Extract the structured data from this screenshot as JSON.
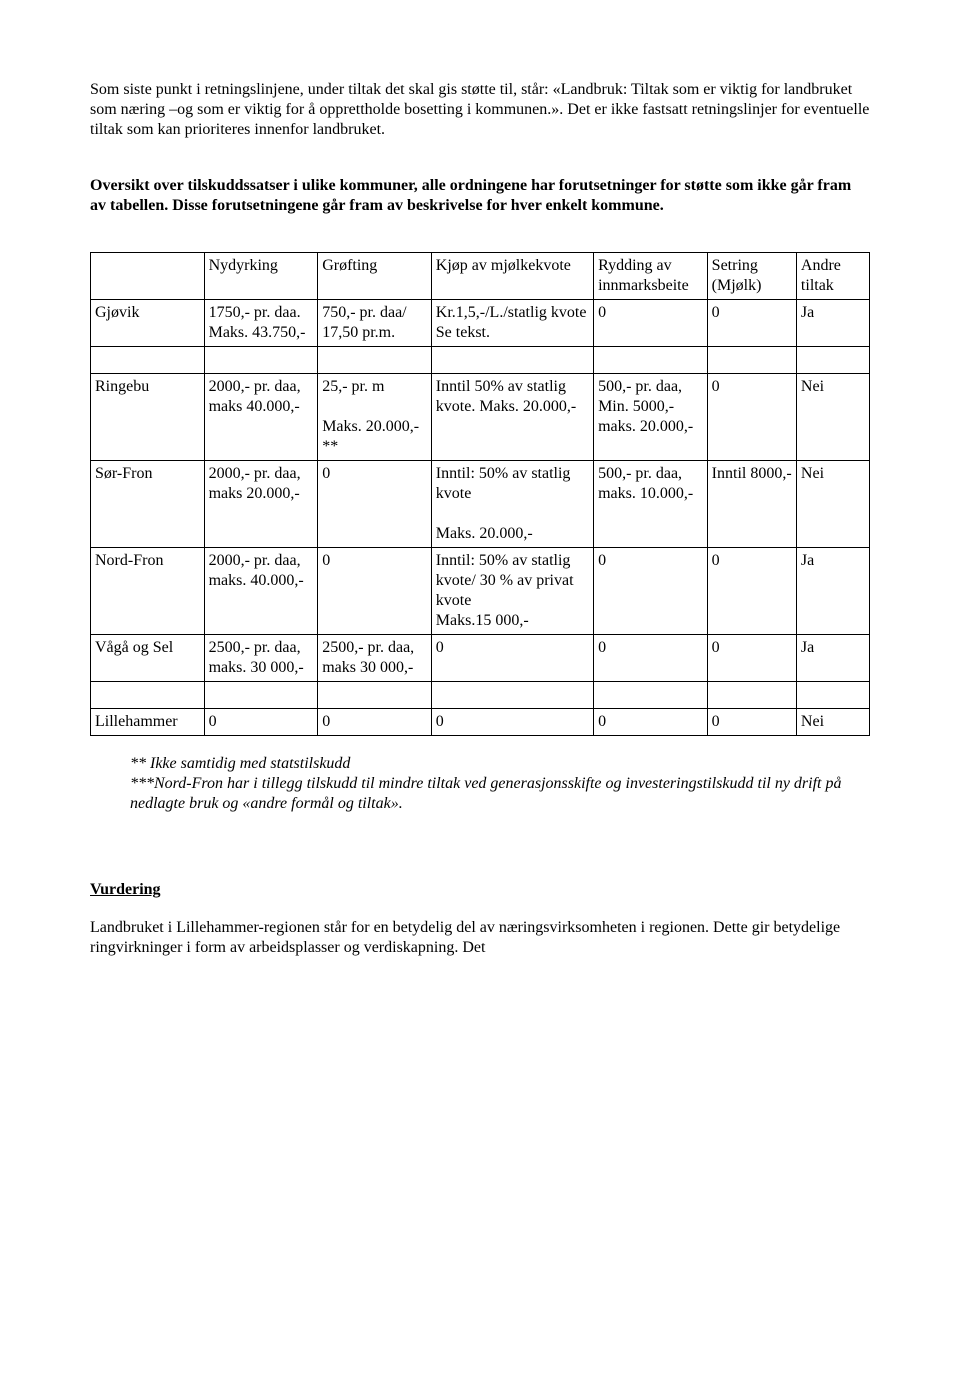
{
  "para1": "Som siste punkt i retningslinjene, under tiltak det skal gis støtte til, står: «Landbruk: Tiltak som er viktig for landbruket som næring –og  som er viktig for å opprettholde bosetting i kommunen.». Det er ikke fastsatt retningslinjer for eventuelle tiltak som kan prioriteres innenfor landbruket.",
  "para2": "Oversikt over tilskuddssatser i ulike kommuner, alle ordningene har forutsetninger for støtte som ikke går fram av tabellen. Disse forutsetningene går fram av beskrivelse for hver enkelt kommune.",
  "table": {
    "headers": [
      "",
      "Nydyrking",
      "Grøfting",
      "Kjøp av mjølkekvote",
      "Rydding av innmarksbeite",
      "Setring (Mjølk)",
      "Andre tiltak"
    ],
    "rows": [
      [
        "Gjøvik",
        "1750,- pr. daa. Maks. 43.750,-",
        "750,- pr. daa/ 17,50 pr.m.",
        "Kr.1,5,-/L./statlig kvote Se tekst.",
        "0",
        "0",
        "Ja"
      ],
      [
        "Ringebu",
        "2000,- pr. daa, maks 40.000,-",
        "25,- pr. m\n\nMaks. 20.000,-**",
        "Inntil 50%  av statlig kvote. Maks. 20.000,-",
        "500,- pr. daa,\nMin. 5000,- maks. 20.000,-",
        "0",
        "Nei"
      ],
      [
        "Sør-Fron",
        "2000,- pr. daa, maks 20.000,-",
        "0",
        "Inntil: 50% av statlig kvote\n\nMaks. 20.000,-",
        "500,- pr. daa, maks. 10.000,-",
        "Inntil 8000,-",
        "Nei"
      ],
      [
        "Nord-Fron",
        "2000,- pr. daa, maks. 40.000,-",
        "0",
        " Inntil: 50% av statlig kvote/ 30 % av privat kvote\nMaks.15 000,-",
        "0",
        "0",
        "Ja"
      ],
      [
        "Vågå og Sel",
        "2500,- pr. daa, maks. 30 000,-",
        "2500,- pr. daa, maks 30 000,-",
        "0",
        "0",
        "0",
        "Ja"
      ],
      [
        "Lillehammer",
        "0",
        "0",
        "0",
        "0",
        "0",
        "Nei"
      ]
    ]
  },
  "footnote1": "** Ikke samtidig med statstilskudd",
  "footnote2": "***Nord-Fron har i tillegg tilskudd til mindre tiltak ved generasjonsskifte og investeringstilskudd til ny drift på nedlagte bruk og «andre formål og tiltak».",
  "vurdering_heading": "Vurdering",
  "para3": "Landbruket i Lillehammer-regionen står for en betydelig del av næringsvirksomheten i regionen.  Dette gir betydelige ringvirkninger i form av arbeidsplasser og verdiskapning. Det"
}
